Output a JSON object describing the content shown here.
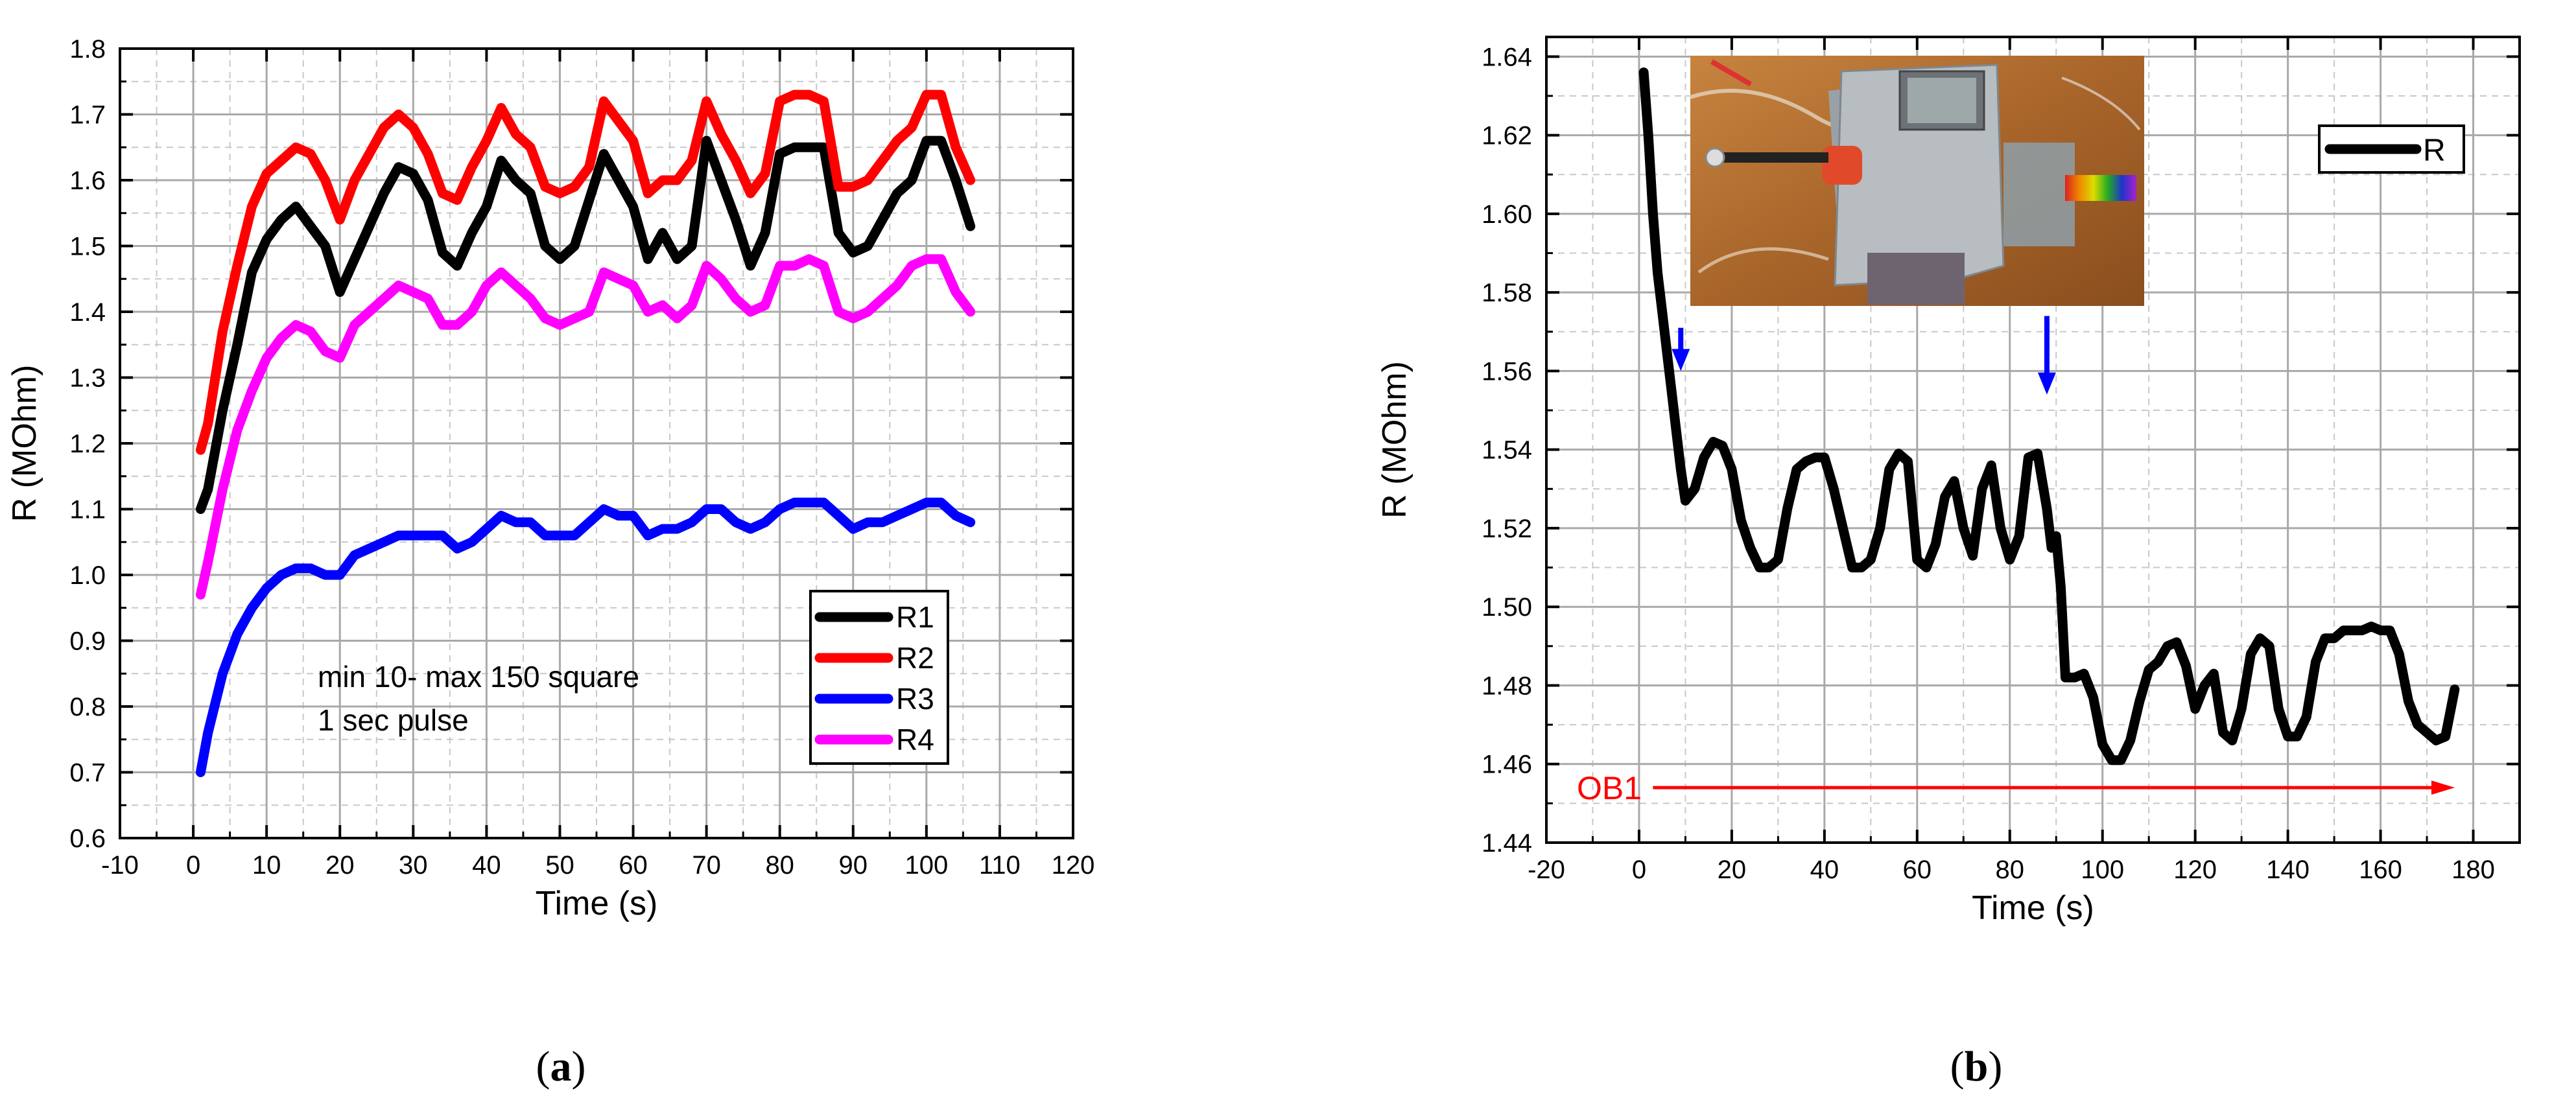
{
  "chart_data": [
    {
      "type": "line",
      "title": "",
      "xlabel": "Time (s)",
      "ylabel": "R (MOhm)",
      "xlim": [
        -10,
        120
      ],
      "ylim": [
        0.6,
        1.8
      ],
      "xticks": [
        -10,
        0,
        10,
        20,
        30,
        40,
        50,
        60,
        70,
        80,
        90,
        100,
        110,
        120
      ],
      "xtick_labels": [
        "-10",
        "0",
        "10",
        "20",
        "30",
        "40",
        "50",
        "60",
        "70",
        "80",
        "90",
        "100",
        "110",
        "120"
      ],
      "yticks": [
        0.6,
        0.7,
        0.8,
        0.9,
        1.0,
        1.1,
        1.2,
        1.3,
        1.4,
        1.5,
        1.6,
        1.7,
        1.8
      ],
      "ytick_labels": [
        "0.6",
        "0.7",
        "0.8",
        "0.9",
        "1.0",
        "1.1",
        "1.2",
        "1.3",
        "1.4",
        "1.5",
        "1.6",
        "1.7",
        "1.8"
      ],
      "grid": true,
      "legend": "lower-right",
      "annotation": [
        "min 10- max 150 square",
        "1 sec pulse"
      ],
      "series": [
        {
          "name": "R1",
          "color": "#000000",
          "x": [
            1,
            2,
            4,
            6,
            8,
            10,
            12,
            14,
            16,
            18,
            20,
            22,
            24,
            26,
            28,
            30,
            32,
            34,
            36,
            38,
            40,
            42,
            44,
            46,
            48,
            50,
            52,
            54,
            56,
            58,
            60,
            62,
            64,
            66,
            68,
            70,
            72,
            74,
            76,
            78,
            80,
            82,
            84,
            86,
            88,
            90,
            92,
            94,
            96,
            98,
            100,
            102,
            104,
            106
          ],
          "y": [
            1.1,
            1.13,
            1.25,
            1.35,
            1.46,
            1.51,
            1.54,
            1.56,
            1.53,
            1.5,
            1.43,
            1.48,
            1.53,
            1.58,
            1.62,
            1.61,
            1.57,
            1.49,
            1.47,
            1.52,
            1.56,
            1.63,
            1.6,
            1.58,
            1.5,
            1.48,
            1.5,
            1.57,
            1.64,
            1.6,
            1.56,
            1.48,
            1.52,
            1.48,
            1.5,
            1.66,
            1.6,
            1.54,
            1.47,
            1.52,
            1.64,
            1.65,
            1.65,
            1.65,
            1.52,
            1.49,
            1.5,
            1.54,
            1.58,
            1.6,
            1.66,
            1.66,
            1.6,
            1.53
          ]
        },
        {
          "name": "R2",
          "color": "#ff0000",
          "x": [
            1,
            2,
            4,
            6,
            8,
            10,
            12,
            14,
            16,
            18,
            20,
            22,
            24,
            26,
            28,
            30,
            32,
            34,
            36,
            38,
            40,
            42,
            44,
            46,
            48,
            50,
            52,
            54,
            56,
            58,
            60,
            62,
            64,
            66,
            68,
            70,
            72,
            74,
            76,
            78,
            80,
            82,
            84,
            86,
            88,
            90,
            92,
            94,
            96,
            98,
            100,
            102,
            104,
            106
          ],
          "y": [
            1.19,
            1.23,
            1.37,
            1.47,
            1.56,
            1.61,
            1.63,
            1.65,
            1.64,
            1.6,
            1.54,
            1.6,
            1.64,
            1.68,
            1.7,
            1.68,
            1.64,
            1.58,
            1.57,
            1.62,
            1.66,
            1.71,
            1.67,
            1.65,
            1.59,
            1.58,
            1.59,
            1.62,
            1.72,
            1.69,
            1.66,
            1.58,
            1.6,
            1.6,
            1.63,
            1.72,
            1.67,
            1.63,
            1.58,
            1.61,
            1.72,
            1.73,
            1.73,
            1.72,
            1.59,
            1.59,
            1.6,
            1.63,
            1.66,
            1.68,
            1.73,
            1.73,
            1.65,
            1.6
          ]
        },
        {
          "name": "R3",
          "color": "#0000ff",
          "x": [
            1,
            2,
            4,
            6,
            8,
            10,
            12,
            14,
            16,
            18,
            20,
            22,
            24,
            26,
            28,
            30,
            32,
            34,
            36,
            38,
            40,
            42,
            44,
            46,
            48,
            50,
            52,
            54,
            56,
            58,
            60,
            62,
            64,
            66,
            68,
            70,
            72,
            74,
            76,
            78,
            80,
            82,
            84,
            86,
            88,
            90,
            92,
            94,
            96,
            98,
            100,
            102,
            104,
            106
          ],
          "y": [
            0.7,
            0.76,
            0.85,
            0.91,
            0.95,
            0.98,
            1.0,
            1.01,
            1.01,
            1.0,
            1.0,
            1.03,
            1.04,
            1.05,
            1.06,
            1.06,
            1.06,
            1.06,
            1.04,
            1.05,
            1.07,
            1.09,
            1.08,
            1.08,
            1.06,
            1.06,
            1.06,
            1.08,
            1.1,
            1.09,
            1.09,
            1.06,
            1.07,
            1.07,
            1.08,
            1.1,
            1.1,
            1.08,
            1.07,
            1.08,
            1.1,
            1.11,
            1.11,
            1.11,
            1.09,
            1.07,
            1.08,
            1.08,
            1.09,
            1.1,
            1.11,
            1.11,
            1.09,
            1.08
          ]
        },
        {
          "name": "R4",
          "color": "#ff00ff",
          "x": [
            1,
            2,
            4,
            6,
            8,
            10,
            12,
            14,
            16,
            18,
            20,
            22,
            24,
            26,
            28,
            30,
            32,
            34,
            36,
            38,
            40,
            42,
            44,
            46,
            48,
            50,
            52,
            54,
            56,
            58,
            60,
            62,
            64,
            66,
            68,
            70,
            72,
            74,
            76,
            78,
            80,
            82,
            84,
            86,
            88,
            90,
            92,
            94,
            96,
            98,
            100,
            102,
            104,
            106
          ],
          "y": [
            0.97,
            1.02,
            1.13,
            1.22,
            1.28,
            1.33,
            1.36,
            1.38,
            1.37,
            1.34,
            1.33,
            1.38,
            1.4,
            1.42,
            1.44,
            1.43,
            1.42,
            1.38,
            1.38,
            1.4,
            1.44,
            1.46,
            1.44,
            1.42,
            1.39,
            1.38,
            1.39,
            1.4,
            1.46,
            1.45,
            1.44,
            1.4,
            1.41,
            1.39,
            1.41,
            1.47,
            1.45,
            1.42,
            1.4,
            1.41,
            1.47,
            1.47,
            1.48,
            1.47,
            1.4,
            1.39,
            1.4,
            1.42,
            1.44,
            1.47,
            1.48,
            1.48,
            1.43,
            1.4
          ]
        }
      ]
    },
    {
      "type": "line",
      "title": "",
      "xlabel": "Time (s)",
      "ylabel": "R (MOhm)",
      "xlim": [
        -20,
        190
      ],
      "ylim": [
        1.44,
        1.645
      ],
      "xticks": [
        -20,
        0,
        20,
        40,
        60,
        80,
        100,
        120,
        140,
        160,
        180
      ],
      "xtick_labels": [
        "-20",
        "0",
        "20",
        "40",
        "60",
        "80",
        "100",
        "120",
        "140",
        "160",
        "180"
      ],
      "yticks": [
        1.44,
        1.46,
        1.48,
        1.5,
        1.52,
        1.54,
        1.56,
        1.58,
        1.6,
        1.62,
        1.64
      ],
      "ytick_labels": [
        "1.44",
        "1.46",
        "1.48",
        "1.50",
        "1.52",
        "1.54",
        "1.56",
        "1.58",
        "1.60",
        "1.62",
        "1.64"
      ],
      "grid": true,
      "legend": "top-right",
      "annotations": [
        {
          "text": "OB1",
          "color": "#ff0000",
          "kind": "arrow",
          "y": 1.454,
          "x_from": 3,
          "x_to": 176
        },
        {
          "text": "",
          "color": "#0000ff",
          "kind": "arrow-down",
          "x": 9,
          "y_from": 1.571,
          "y_to": 1.56
        },
        {
          "text": "",
          "color": "#0000ff",
          "kind": "arrow-down",
          "x": 88,
          "y_from": 1.574,
          "y_to": 1.554
        }
      ],
      "inset_image": "photo of grey wrist-worn device with red button, ribbon cable attached",
      "series": [
        {
          "name": "R",
          "color": "#000000",
          "x": [
            1,
            2,
            3,
            4,
            5,
            6,
            7,
            8,
            9,
            10,
            12,
            14,
            16,
            18,
            20,
            22,
            24,
            26,
            28,
            30,
            32,
            34,
            36,
            38,
            40,
            42,
            44,
            46,
            48,
            50,
            52,
            54,
            56,
            58,
            60,
            62,
            64,
            66,
            68,
            70,
            72,
            74,
            76,
            78,
            80,
            82,
            84,
            86,
            88,
            89,
            90,
            91,
            92,
            94,
            96,
            98,
            100,
            102,
            104,
            106,
            108,
            110,
            112,
            114,
            116,
            118,
            120,
            122,
            124,
            126,
            128,
            130,
            132,
            134,
            136,
            138,
            140,
            142,
            144,
            146,
            148,
            150,
            152,
            154,
            156,
            158,
            160,
            162,
            164,
            166,
            168,
            170,
            172,
            174,
            176
          ],
          "y": [
            1.636,
            1.62,
            1.6,
            1.585,
            1.575,
            1.565,
            1.555,
            1.545,
            1.535,
            1.527,
            1.53,
            1.538,
            1.542,
            1.541,
            1.535,
            1.522,
            1.515,
            1.51,
            1.51,
            1.512,
            1.525,
            1.535,
            1.537,
            1.538,
            1.538,
            1.53,
            1.52,
            1.51,
            1.51,
            1.512,
            1.52,
            1.535,
            1.539,
            1.537,
            1.512,
            1.51,
            1.516,
            1.528,
            1.532,
            1.52,
            1.513,
            1.53,
            1.536,
            1.52,
            1.512,
            1.518,
            1.538,
            1.539,
            1.525,
            1.515,
            1.518,
            1.505,
            1.482,
            1.482,
            1.483,
            1.477,
            1.465,
            1.461,
            1.461,
            1.466,
            1.476,
            1.484,
            1.486,
            1.49,
            1.491,
            1.485,
            1.474,
            1.48,
            1.483,
            1.468,
            1.466,
            1.474,
            1.488,
            1.492,
            1.49,
            1.474,
            1.467,
            1.467,
            1.472,
            1.486,
            1.492,
            1.492,
            1.494,
            1.494,
            1.494,
            1.495,
            1.494,
            1.494,
            1.488,
            1.476,
            1.47,
            1.468,
            1.466,
            1.467,
            1.479
          ]
        }
      ]
    }
  ],
  "captions": {
    "a_letter": "a",
    "b_letter": "b"
  }
}
